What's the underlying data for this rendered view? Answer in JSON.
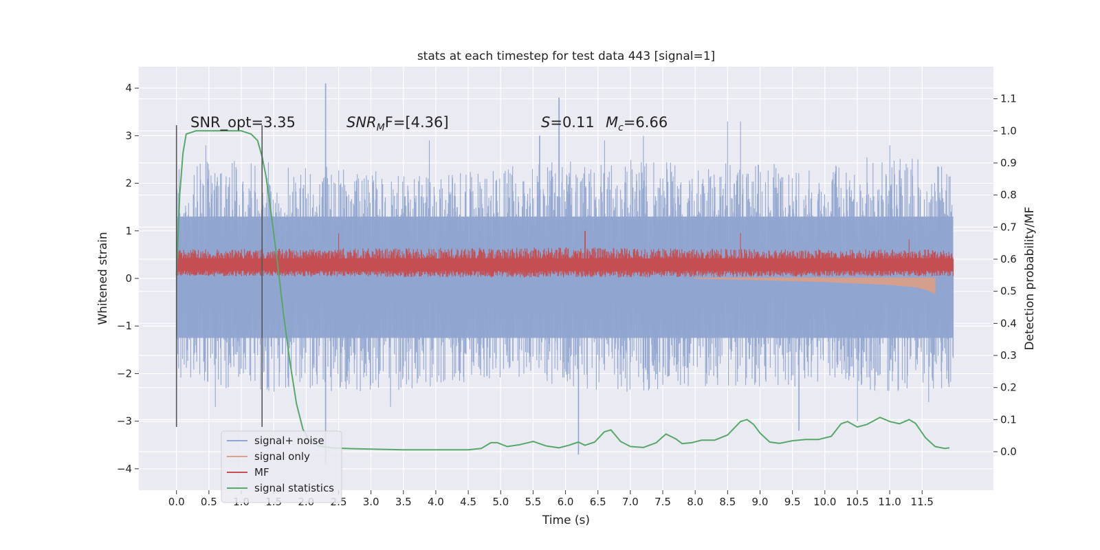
{
  "chart_data": {
    "type": "line",
    "title": "stats at each timestep for test data 443 [signal=1]",
    "xlabel": "Time (s)",
    "ylabel": "Whitened strain",
    "y2label": "Detection probability/MF",
    "xlim": [
      -0.58,
      12.6
    ],
    "ylim": [
      -4.45,
      4.45
    ],
    "y2lim": [
      -0.12,
      1.2
    ],
    "x_ticks": [
      "0.0",
      "0.5",
      "1.0",
      "1.5",
      "2.0",
      "2.5",
      "3.0",
      "3.5",
      "4.0",
      "4.5",
      "5.0",
      "5.5",
      "6.0",
      "6.5",
      "7.0",
      "7.5",
      "8.0",
      "8.5",
      "9.0",
      "9.5",
      "10.0",
      "10.5",
      "11.0",
      "11.5"
    ],
    "y_ticks": [
      "4",
      "3",
      "2",
      "1",
      "0",
      "−1",
      "−2",
      "−3",
      "−4"
    ],
    "y2_ticks": [
      "1.1",
      "1.0",
      "0.9",
      "0.8",
      "0.7",
      "0.6",
      "0.5",
      "0.4",
      "0.3",
      "0.2",
      "0.1",
      "0.0"
    ],
    "grid": true,
    "legend_position": "lower-left",
    "annotations": {
      "snr_opt": "SNR_opt=3.35",
      "snr_mf_base": "SNR",
      "snr_mf_sub": "M",
      "snr_mf_rest": "F=[4.36]",
      "s_sym": "S",
      "s_rest": "=0.11",
      "mc_base": "M",
      "mc_sub": "c",
      "mc_rest": "=6.66"
    },
    "markers": [
      0.0,
      1.32
    ],
    "time_range": [
      0.0,
      11.98
    ],
    "series": [
      {
        "name": "signal+ noise",
        "color": "#8fa4cf",
        "envelope": {
          "t": [
            0,
            1,
            2,
            3,
            4,
            5,
            6,
            7,
            8,
            9,
            10,
            11,
            11.95
          ],
          "upper": [
            2.3,
            2.5,
            2.3,
            2.2,
            2.1,
            2.3,
            2.4,
            2.4,
            2.4,
            2.3,
            2.4,
            2.5,
            2.3
          ],
          "lower": [
            -2.0,
            -2.3,
            -2.3,
            -2.3,
            -2.2,
            -2.1,
            -2.2,
            -2.3,
            -2.2,
            -2.2,
            -2.2,
            -2.3,
            -2.2
          ],
          "peaks": [
            [
              0.45,
              2.8
            ],
            [
              0.6,
              -2.7
            ],
            [
              2.3,
              4.1
            ],
            [
              2.3,
              -3.9
            ],
            [
              3.3,
              -2.7
            ],
            [
              3.9,
              2.9
            ],
            [
              5.6,
              3.0
            ],
            [
              5.9,
              3.8
            ],
            [
              6.2,
              -3.7
            ],
            [
              6.6,
              2.9
            ],
            [
              7.2,
              3.0
            ],
            [
              8.5,
              3.3
            ],
            [
              8.7,
              3.3
            ],
            [
              9.6,
              -3.2
            ],
            [
              10.5,
              -3.0
            ],
            [
              11.0,
              2.8
            ],
            [
              11.6,
              -2.6
            ]
          ]
        }
      },
      {
        "name": "signal only",
        "color": "#dd9f88",
        "envelope": {
          "t": [
            8.0,
            9.0,
            10.0,
            11.0,
            11.4,
            11.6,
            11.7
          ],
          "lower": [
            0.0,
            -0.03,
            -0.07,
            -0.13,
            -0.18,
            -0.25,
            -0.32
          ]
        }
      },
      {
        "name": "MF",
        "color": "#c44e52",
        "envelope": {
          "t": [
            0,
            3,
            6,
            9,
            11.95
          ],
          "upper": [
            0.6,
            0.62,
            0.64,
            0.6,
            0.6
          ],
          "lower": [
            0.05,
            0.03,
            0.02,
            0.03,
            0.05
          ],
          "peaks": [
            [
              2.5,
              0.95
            ],
            [
              6.3,
              1.0
            ],
            [
              8.7,
              0.95
            ],
            [
              11.3,
              0.82
            ]
          ]
        }
      },
      {
        "name": "signal statistics",
        "color": "#55a868",
        "axis": "right",
        "x": [
          0.0,
          0.05,
          0.1,
          0.15,
          0.3,
          0.6,
          1.0,
          1.15,
          1.25,
          1.32,
          1.38,
          1.45,
          1.55,
          1.65,
          1.75,
          1.85,
          1.95,
          2.05,
          2.2,
          2.4,
          2.6,
          3.0,
          3.5,
          4.0,
          4.5,
          4.7,
          4.85,
          4.95,
          5.1,
          5.3,
          5.5,
          5.7,
          5.9,
          6.05,
          6.2,
          6.3,
          6.45,
          6.6,
          6.7,
          6.85,
          7.0,
          7.2,
          7.4,
          7.55,
          7.7,
          7.8,
          7.95,
          8.1,
          8.3,
          8.5,
          8.7,
          8.8,
          8.9,
          9.0,
          9.15,
          9.3,
          9.5,
          9.7,
          9.9,
          10.1,
          10.25,
          10.35,
          10.5,
          10.65,
          10.85,
          11.0,
          11.15,
          11.3,
          11.4,
          11.55,
          11.7,
          11.85,
          11.92
        ],
        "y": [
          0.55,
          0.8,
          0.93,
          0.99,
          1.0,
          1.0,
          1.0,
          0.99,
          0.97,
          0.92,
          0.86,
          0.76,
          0.6,
          0.43,
          0.28,
          0.15,
          0.07,
          0.035,
          0.018,
          0.012,
          0.01,
          0.008,
          0.006,
          0.006,
          0.006,
          0.01,
          0.028,
          0.028,
          0.016,
          0.022,
          0.032,
          0.018,
          0.012,
          0.02,
          0.03,
          0.02,
          0.03,
          0.062,
          0.068,
          0.032,
          0.016,
          0.013,
          0.028,
          0.055,
          0.04,
          0.025,
          0.028,
          0.036,
          0.036,
          0.052,
          0.094,
          0.1,
          0.085,
          0.058,
          0.03,
          0.026,
          0.034,
          0.038,
          0.038,
          0.048,
          0.087,
          0.094,
          0.077,
          0.085,
          0.107,
          0.094,
          0.087,
          0.1,
          0.088,
          0.044,
          0.016,
          0.01,
          0.012
        ]
      }
    ]
  }
}
